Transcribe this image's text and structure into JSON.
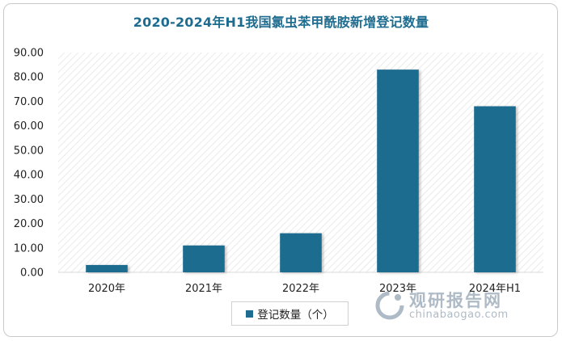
{
  "chart_data": {
    "type": "bar",
    "title": "2020-2024年H1我国氯虫苯甲酰胺新增登记数量",
    "categories": [
      "2020年",
      "2021年",
      "2022年",
      "2023年",
      "2024年H1"
    ],
    "series": [
      {
        "name": "登记数量（个）",
        "values": [
          3,
          11,
          16,
          83,
          68
        ],
        "color": "#1e6c8f"
      }
    ],
    "yticks": [
      "0.00",
      "10.00",
      "20.00",
      "30.00",
      "40.00",
      "50.00",
      "60.00",
      "70.00",
      "80.00",
      "90.00"
    ],
    "ylim": [
      0,
      90
    ],
    "xlabel": "",
    "ylabel": "",
    "grid": false,
    "legend_position": "bottom",
    "plot_background": "diagonal hatch"
  },
  "watermark": {
    "text_cn": "观研报告网",
    "text_en": "chinabaogao.com",
    "icon": "ring-logo-icon"
  }
}
